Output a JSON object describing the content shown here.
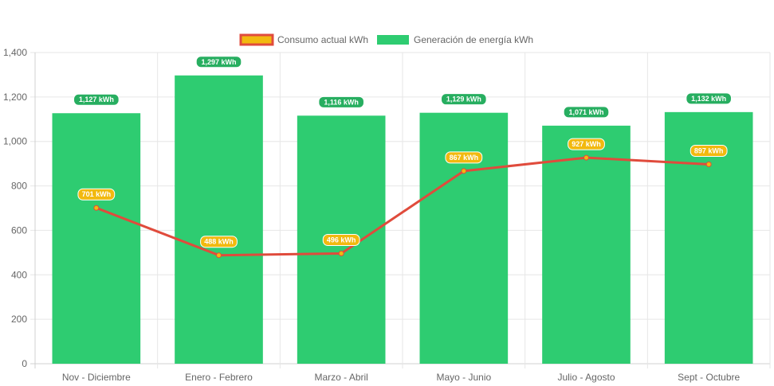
{
  "chart_data": {
    "type": "bar",
    "title": "",
    "xlabel": "",
    "ylabel": "",
    "ylim": [
      0,
      1400
    ],
    "yticks": [
      0,
      200,
      400,
      600,
      800,
      1000,
      1200,
      1400
    ],
    "ytick_labels": [
      "0",
      "200",
      "400",
      "600",
      "800",
      "1,000",
      "1,200",
      "1,400"
    ],
    "grid": true,
    "legend_position": "top-center",
    "categories": [
      "Nov - Diciembre",
      "Enero - Febrero",
      "Marzo - Abril",
      "Mayo - Junio",
      "Julio - Agosto",
      "Sept - Octubre"
    ],
    "series": [
      {
        "name": "Consumo actual kWh",
        "type": "line",
        "color": "#e04b3c",
        "badge_color": "#f2b90f",
        "values": [
          701,
          488,
          496,
          867,
          927,
          897
        ],
        "labels": [
          "701 kWh",
          "488 kWh",
          "496 kWh",
          "867 kWh",
          "927 kWh",
          "897 kWh"
        ]
      },
      {
        "name": "Generación de energía kWh",
        "type": "bar",
        "color": "#2ecc71",
        "badge_color": "#27ae60",
        "values": [
          1127,
          1297,
          1116,
          1129,
          1071,
          1132
        ],
        "labels": [
          "1,127 kWh",
          "1,297 kWh",
          "1,116 kWh",
          "1,129 kWh",
          "1,071 kWh",
          "1,132 kWh"
        ]
      }
    ]
  }
}
